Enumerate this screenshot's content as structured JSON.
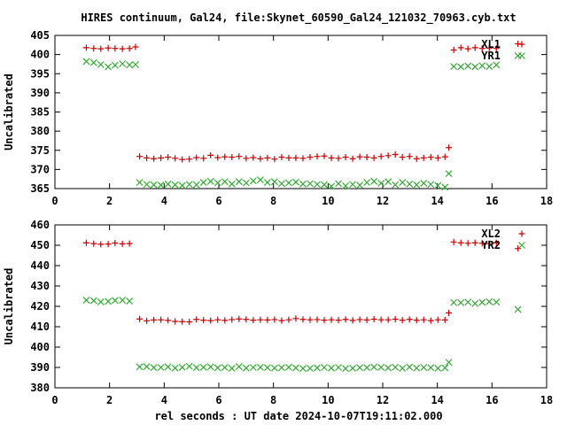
{
  "title": "HIRES continuum, Gal24, file:Skynet_60590_Gal24_121032_70963.cyb.txt",
  "xlabel": "rel seconds : UT date 2024-10-07T19:11:02.000",
  "colors": {
    "xl": "#cc0000",
    "yr": "#33aa33",
    "axis": "#000000"
  },
  "chart_data": [
    {
      "type": "scatter",
      "ylabel": "Uncalibrated",
      "xlim": [
        0,
        18
      ],
      "ylim": [
        365,
        405
      ],
      "xticks": [
        0,
        2,
        4,
        6,
        8,
        10,
        12,
        14,
        16,
        18
      ],
      "yticks": [
        365,
        370,
        375,
        380,
        385,
        390,
        395,
        400,
        405
      ],
      "legend_position": "top-right",
      "series": [
        {
          "name": "XL1",
          "marker": "plus",
          "points": [
            [
              1.15,
              401.8
            ],
            [
              1.42,
              401.6
            ],
            [
              1.68,
              401.5
            ],
            [
              1.95,
              401.7
            ],
            [
              2.2,
              401.6
            ],
            [
              2.47,
              401.5
            ],
            [
              2.73,
              401.6
            ],
            [
              2.95,
              402.0
            ],
            [
              3.1,
              373.4
            ],
            [
              3.36,
              373.0
            ],
            [
              3.62,
              372.8
            ],
            [
              3.88,
              373.0
            ],
            [
              4.14,
              373.2
            ],
            [
              4.4,
              372.9
            ],
            [
              4.66,
              372.6
            ],
            [
              4.92,
              372.7
            ],
            [
              5.18,
              373.1
            ],
            [
              5.44,
              372.9
            ],
            [
              5.7,
              373.7
            ],
            [
              5.96,
              373.1
            ],
            [
              6.22,
              373.3
            ],
            [
              6.48,
              373.2
            ],
            [
              6.74,
              373.4
            ],
            [
              7.0,
              372.9
            ],
            [
              7.26,
              373.1
            ],
            [
              7.52,
              372.8
            ],
            [
              7.78,
              373.0
            ],
            [
              8.04,
              372.7
            ],
            [
              8.3,
              373.2
            ],
            [
              8.56,
              373.0
            ],
            [
              8.82,
              373.0
            ],
            [
              9.08,
              372.9
            ],
            [
              9.34,
              373.2
            ],
            [
              9.6,
              373.4
            ],
            [
              9.86,
              373.5
            ],
            [
              10.12,
              373.0
            ],
            [
              10.38,
              372.9
            ],
            [
              10.64,
              373.2
            ],
            [
              10.9,
              372.8
            ],
            [
              11.16,
              373.3
            ],
            [
              11.42,
              373.2
            ],
            [
              11.68,
              373.0
            ],
            [
              11.94,
              373.4
            ],
            [
              12.2,
              373.6
            ],
            [
              12.46,
              373.9
            ],
            [
              12.72,
              373.2
            ],
            [
              12.98,
              373.4
            ],
            [
              13.24,
              372.8
            ],
            [
              13.5,
              373.0
            ],
            [
              13.76,
              373.2
            ],
            [
              14.02,
              373.0
            ],
            [
              14.28,
              373.3
            ],
            [
              14.42,
              375.7
            ],
            [
              14.6,
              401.2
            ],
            [
              14.86,
              401.8
            ],
            [
              15.12,
              401.5
            ],
            [
              15.38,
              401.8
            ],
            [
              15.64,
              401.6
            ],
            [
              15.9,
              401.7
            ],
            [
              16.16,
              401.6
            ],
            [
              16.95,
              402.8
            ]
          ]
        },
        {
          "name": "YR1",
          "marker": "cross",
          "points": [
            [
              1.15,
              398.2
            ],
            [
              1.42,
              397.9
            ],
            [
              1.68,
              397.4
            ],
            [
              1.95,
              396.8
            ],
            [
              2.2,
              397.2
            ],
            [
              2.47,
              397.6
            ],
            [
              2.73,
              397.3
            ],
            [
              2.95,
              397.4
            ],
            [
              3.1,
              366.6
            ],
            [
              3.36,
              366.1
            ],
            [
              3.62,
              366.0
            ],
            [
              3.88,
              365.9
            ],
            [
              4.14,
              366.2
            ],
            [
              4.4,
              366.0
            ],
            [
              4.66,
              365.8
            ],
            [
              4.92,
              366.1
            ],
            [
              5.18,
              366.0
            ],
            [
              5.44,
              366.6
            ],
            [
              5.7,
              366.9
            ],
            [
              5.96,
              366.5
            ],
            [
              6.22,
              366.8
            ],
            [
              6.48,
              366.2
            ],
            [
              6.74,
              366.8
            ],
            [
              7.0,
              366.5
            ],
            [
              7.26,
              367.0
            ],
            [
              7.52,
              367.3
            ],
            [
              7.78,
              366.6
            ],
            [
              8.04,
              366.8
            ],
            [
              8.3,
              366.3
            ],
            [
              8.56,
              366.5
            ],
            [
              8.82,
              366.7
            ],
            [
              9.08,
              366.2
            ],
            [
              9.34,
              366.3
            ],
            [
              9.6,
              366.1
            ],
            [
              9.86,
              366.0
            ],
            [
              10.12,
              365.6
            ],
            [
              10.38,
              366.3
            ],
            [
              10.64,
              365.7
            ],
            [
              10.9,
              366.1
            ],
            [
              11.16,
              365.9
            ],
            [
              11.42,
              366.6
            ],
            [
              11.68,
              366.9
            ],
            [
              11.94,
              366.4
            ],
            [
              12.2,
              366.8
            ],
            [
              12.46,
              366.0
            ],
            [
              12.72,
              366.6
            ],
            [
              12.98,
              366.2
            ],
            [
              13.24,
              366.0
            ],
            [
              13.5,
              366.4
            ],
            [
              13.76,
              366.1
            ],
            [
              14.02,
              365.8
            ],
            [
              14.28,
              365.4
            ],
            [
              14.42,
              368.9
            ],
            [
              14.6,
              396.9
            ],
            [
              14.86,
              396.8
            ],
            [
              15.12,
              397.0
            ],
            [
              15.38,
              396.8
            ],
            [
              15.64,
              397.1
            ],
            [
              15.9,
              396.9
            ],
            [
              16.16,
              397.3
            ],
            [
              16.95,
              399.7
            ]
          ]
        }
      ]
    },
    {
      "type": "scatter",
      "ylabel": "Uncalibrated",
      "xlim": [
        0,
        18
      ],
      "ylim": [
        380,
        460
      ],
      "xticks": [
        0,
        2,
        4,
        6,
        8,
        10,
        12,
        14,
        16,
        18
      ],
      "yticks": [
        380,
        390,
        400,
        410,
        420,
        430,
        440,
        450,
        460
      ],
      "legend_position": "top-right",
      "series": [
        {
          "name": "XL2",
          "marker": "plus",
          "points": [
            [
              1.15,
              451.2
            ],
            [
              1.42,
              450.8
            ],
            [
              1.68,
              450.5
            ],
            [
              1.95,
              450.6
            ],
            [
              2.2,
              451.1
            ],
            [
              2.47,
              450.7
            ],
            [
              2.73,
              450.8
            ],
            [
              3.1,
              413.8
            ],
            [
              3.36,
              412.9
            ],
            [
              3.62,
              413.3
            ],
            [
              3.88,
              413.4
            ],
            [
              4.14,
              413.1
            ],
            [
              4.4,
              412.6
            ],
            [
              4.66,
              412.5
            ],
            [
              4.92,
              412.4
            ],
            [
              5.18,
              413.6
            ],
            [
              5.44,
              413.2
            ],
            [
              5.7,
              413.0
            ],
            [
              5.96,
              413.4
            ],
            [
              6.22,
              413.1
            ],
            [
              6.48,
              413.5
            ],
            [
              6.74,
              413.8
            ],
            [
              7.0,
              413.6
            ],
            [
              7.26,
              413.2
            ],
            [
              7.52,
              413.4
            ],
            [
              7.78,
              413.3
            ],
            [
              8.04,
              413.5
            ],
            [
              8.3,
              413.0
            ],
            [
              8.56,
              413.4
            ],
            [
              8.82,
              414.0
            ],
            [
              9.08,
              413.6
            ],
            [
              9.34,
              413.4
            ],
            [
              9.6,
              413.5
            ],
            [
              9.86,
              413.2
            ],
            [
              10.12,
              413.4
            ],
            [
              10.38,
              413.2
            ],
            [
              10.64,
              413.6
            ],
            [
              10.9,
              413.1
            ],
            [
              11.16,
              413.5
            ],
            [
              11.42,
              413.3
            ],
            [
              11.68,
              413.7
            ],
            [
              11.94,
              413.4
            ],
            [
              12.2,
              413.4
            ],
            [
              12.46,
              413.7
            ],
            [
              12.72,
              413.2
            ],
            [
              12.98,
              413.6
            ],
            [
              13.24,
              413.2
            ],
            [
              13.5,
              413.4
            ],
            [
              13.76,
              413.0
            ],
            [
              14.02,
              413.4
            ],
            [
              14.28,
              413.3
            ],
            [
              14.42,
              416.8
            ],
            [
              14.6,
              451.6
            ],
            [
              14.86,
              451.2
            ],
            [
              15.12,
              451.0
            ],
            [
              15.38,
              451.2
            ],
            [
              15.64,
              451.0
            ],
            [
              15.9,
              450.8
            ],
            [
              16.16,
              451.2
            ],
            [
              16.95,
              448.4
            ]
          ]
        },
        {
          "name": "YR2",
          "marker": "cross",
          "points": [
            [
              1.15,
              423.0
            ],
            [
              1.42,
              422.8
            ],
            [
              1.68,
              422.2
            ],
            [
              1.95,
              422.4
            ],
            [
              2.2,
              422.9
            ],
            [
              2.47,
              423.0
            ],
            [
              2.73,
              422.6
            ],
            [
              3.1,
              390.3
            ],
            [
              3.36,
              390.4
            ],
            [
              3.62,
              389.9
            ],
            [
              3.88,
              390.0
            ],
            [
              4.14,
              390.3
            ],
            [
              4.4,
              389.7
            ],
            [
              4.66,
              390.1
            ],
            [
              4.92,
              390.6
            ],
            [
              5.18,
              389.9
            ],
            [
              5.44,
              390.1
            ],
            [
              5.7,
              390.3
            ],
            [
              5.96,
              389.8
            ],
            [
              6.22,
              390.0
            ],
            [
              6.48,
              389.6
            ],
            [
              6.74,
              390.4
            ],
            [
              7.0,
              389.7
            ],
            [
              7.26,
              390.0
            ],
            [
              7.52,
              390.1
            ],
            [
              7.78,
              389.9
            ],
            [
              8.04,
              389.7
            ],
            [
              8.3,
              389.9
            ],
            [
              8.56,
              390.1
            ],
            [
              8.82,
              389.8
            ],
            [
              9.08,
              389.5
            ],
            [
              9.34,
              389.6
            ],
            [
              9.6,
              389.8
            ],
            [
              9.86,
              390.0
            ],
            [
              10.12,
              389.7
            ],
            [
              10.38,
              390.0
            ],
            [
              10.64,
              389.5
            ],
            [
              10.9,
              389.6
            ],
            [
              11.16,
              389.9
            ],
            [
              11.42,
              389.9
            ],
            [
              11.68,
              390.2
            ],
            [
              11.94,
              390.1
            ],
            [
              12.2,
              389.8
            ],
            [
              12.46,
              390.1
            ],
            [
              12.72,
              389.6
            ],
            [
              12.98,
              390.2
            ],
            [
              13.24,
              389.7
            ],
            [
              13.5,
              390.0
            ],
            [
              13.76,
              389.9
            ],
            [
              14.02,
              389.6
            ],
            [
              14.28,
              389.8
            ],
            [
              14.42,
              392.5
            ],
            [
              14.6,
              421.9
            ],
            [
              14.86,
              421.8
            ],
            [
              15.12,
              422.1
            ],
            [
              15.38,
              421.4
            ],
            [
              15.64,
              422.0
            ],
            [
              15.9,
              422.3
            ],
            [
              16.16,
              422.1
            ],
            [
              16.95,
              418.5
            ]
          ]
        }
      ]
    }
  ]
}
